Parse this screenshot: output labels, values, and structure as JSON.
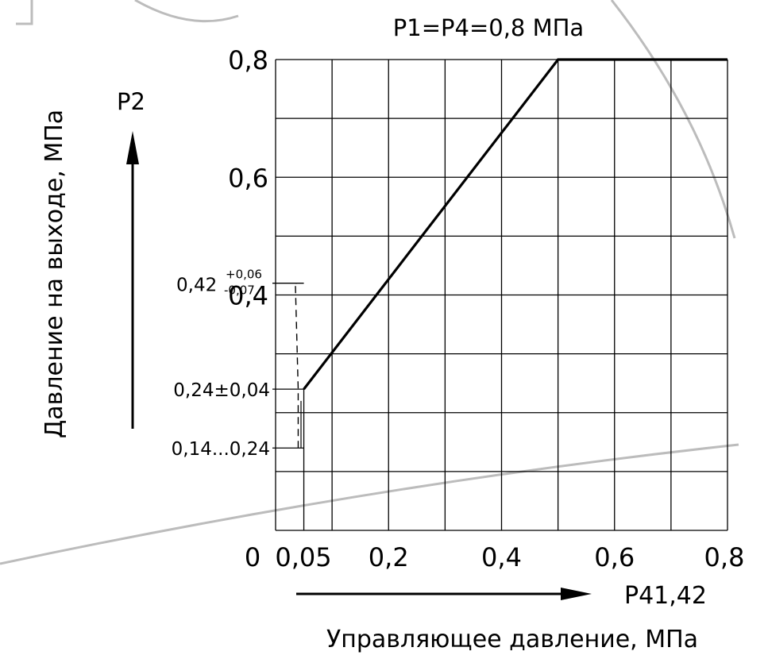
{
  "chart_data": {
    "type": "line",
    "title": "P1=P4=0,8 МПа",
    "xlabel": "Управляющее давление, МПа",
    "ylabel": "Давление на выходе, МПа",
    "x_axis_name": "P41,42",
    "y_axis_name": "P2",
    "xlim": [
      0,
      0.8
    ],
    "ylim": [
      0,
      0.8
    ],
    "grid": true,
    "grid_x": [
      0,
      0.1,
      0.2,
      0.3,
      0.4,
      0.5,
      0.6,
      0.7,
      0.8
    ],
    "grid_y": [
      0,
      0.1,
      0.2,
      0.3,
      0.4,
      0.5,
      0.6,
      0.7,
      0.8
    ],
    "x_tick_labels": [
      {
        "x": 0,
        "label": "0"
      },
      {
        "x": 0.05,
        "label": "0,05"
      },
      {
        "x": 0.2,
        "label": "0,2"
      },
      {
        "x": 0.4,
        "label": "0,4"
      },
      {
        "x": 0.6,
        "label": "0,6"
      },
      {
        "x": 0.8,
        "label": "0,8"
      }
    ],
    "y_tick_labels": [
      {
        "y": 0.8,
        "label": "0,8"
      },
      {
        "y": 0.6,
        "label": "0,6"
      },
      {
        "y": 0.4,
        "label": "0,4"
      }
    ],
    "series": [
      {
        "points": [
          [
            0.05,
            0.24
          ],
          [
            0.5,
            0.8
          ],
          [
            0.8,
            0.8
          ]
        ]
      }
    ],
    "tolerance_band": {
      "points": [
        [
          0.04,
          0.14
        ],
        [
          0.04,
          0.24
        ],
        [
          0.035,
          0.42
        ]
      ]
    },
    "annotations": [
      {
        "y": 0.42,
        "label": "0,42",
        "sup": "+0,06",
        "sub": "-0,07"
      },
      {
        "y": 0.24,
        "label": "0,24±0,04"
      },
      {
        "y": 0.14,
        "label": "0,14...0,24"
      }
    ],
    "colors": {
      "line": "#000000",
      "grid": "#000000",
      "background": "#ffffff",
      "decor": "#bcbcbc"
    }
  }
}
